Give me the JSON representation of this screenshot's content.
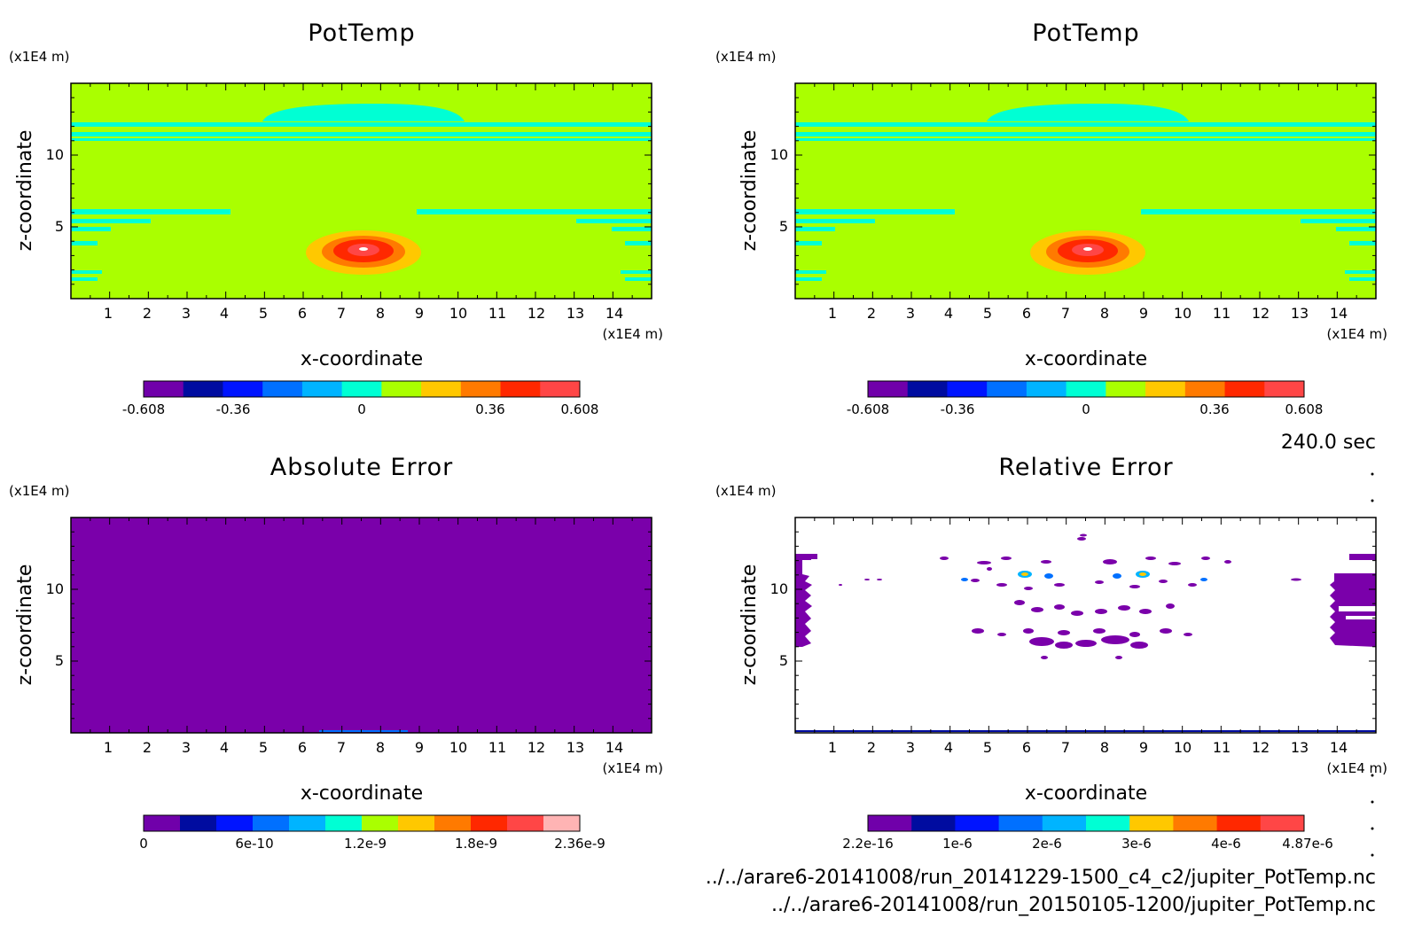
{
  "figure": {
    "time_label": "240.0 sec",
    "file_lines": [
      "../../arare6-20141008/run_20141229-1500_c4_c2/jupiter_PotTemp.nc",
      "../../arare6-20141008/run_20150105-1200/jupiter_PotTemp.nc"
    ]
  },
  "colors": {
    "levels_11": [
      "#7000aa",
      "#000ca0",
      "#0014ff",
      "#0070ff",
      "#00b4ff",
      "#00ffd4",
      "#aaff00",
      "#ffc800",
      "#ff7a00",
      "#ff2800",
      "#ff4646",
      "#ffb4b4"
    ],
    "levels_12": [
      "#7000aa",
      "#000ca0",
      "#0014ff",
      "#0070ff",
      "#00b4ff",
      "#00ffd4",
      "#aaff00",
      "#ffc800",
      "#ff7a00",
      "#ff2800",
      "#ff4646",
      "#ffb4b4"
    ],
    "background_field": "#aaff00",
    "stripe": "#00ffd4"
  },
  "chart_data": [
    {
      "type": "heatmap",
      "title": "PotTemp",
      "xlabel": "x-coordinate",
      "ylabel": "z-coordinate",
      "x_unit": "(x1E4 m)",
      "y_unit": "(x1E4 m)",
      "xlim": [
        0,
        15
      ],
      "ylim": [
        0,
        15
      ],
      "x_ticks": [
        "1",
        "2",
        "3",
        "4",
        "5",
        "6",
        "7",
        "8",
        "9",
        "10",
        "11",
        "12",
        "13",
        "14"
      ],
      "y_ticks": [
        "5",
        "10"
      ],
      "colorbar_labels": [
        "-0.608",
        "-0.36",
        "0",
        "0.36",
        "0.608"
      ],
      "colorbar_range": [
        -0.608,
        0.608
      ],
      "feature": {
        "kind": "warm bubble",
        "center_x": 7.6,
        "center_z": 3.3,
        "max": 0.608
      }
    },
    {
      "type": "heatmap",
      "title": "PotTemp",
      "xlabel": "x-coordinate",
      "ylabel": "z-coordinate",
      "x_unit": "(x1E4 m)",
      "y_unit": "(x1E4 m)",
      "xlim": [
        0,
        15
      ],
      "ylim": [
        0,
        15
      ],
      "x_ticks": [
        "1",
        "2",
        "3",
        "4",
        "5",
        "6",
        "7",
        "8",
        "9",
        "10",
        "11",
        "12",
        "13",
        "14"
      ],
      "y_ticks": [
        "5",
        "10"
      ],
      "colorbar_labels": [
        "-0.608",
        "-0.36",
        "0",
        "0.36",
        "0.608"
      ],
      "colorbar_range": [
        -0.608,
        0.608
      ],
      "feature": {
        "kind": "warm bubble",
        "center_x": 7.6,
        "center_z": 3.3,
        "max": 0.608
      }
    },
    {
      "type": "heatmap",
      "title": "Absolute Error",
      "xlabel": "x-coordinate",
      "ylabel": "z-coordinate",
      "x_unit": "(x1E4 m)",
      "y_unit": "(x1E4 m)",
      "xlim": [
        0,
        15
      ],
      "ylim": [
        0,
        15
      ],
      "x_ticks": [
        "1",
        "2",
        "3",
        "4",
        "5",
        "6",
        "7",
        "8",
        "9",
        "10",
        "11",
        "12",
        "13",
        "14"
      ],
      "y_ticks": [
        "5",
        "10"
      ],
      "colorbar_labels": [
        "0",
        "6e-10",
        "1.2e-9",
        "1.8e-9",
        "2.36e-9"
      ],
      "colorbar_range": [
        0,
        2.36e-09
      ]
    },
    {
      "type": "heatmap",
      "title": "Relative Error",
      "xlabel": "x-coordinate",
      "ylabel": "z-coordinate",
      "x_unit": "(x1E4 m)",
      "y_unit": "(x1E4 m)",
      "xlim": [
        0,
        15
      ],
      "ylim": [
        0,
        15
      ],
      "x_ticks": [
        "1",
        "2",
        "3",
        "4",
        "5",
        "6",
        "7",
        "8",
        "9",
        "10",
        "11",
        "12",
        "13",
        "14"
      ],
      "y_ticks": [
        "5",
        "10"
      ],
      "colorbar_labels": [
        "2.2e-16",
        "1e-6",
        "2e-6",
        "3e-6",
        "4e-6",
        "4.87e-6"
      ],
      "colorbar_range": [
        2.2e-16,
        4.87e-06
      ]
    }
  ]
}
